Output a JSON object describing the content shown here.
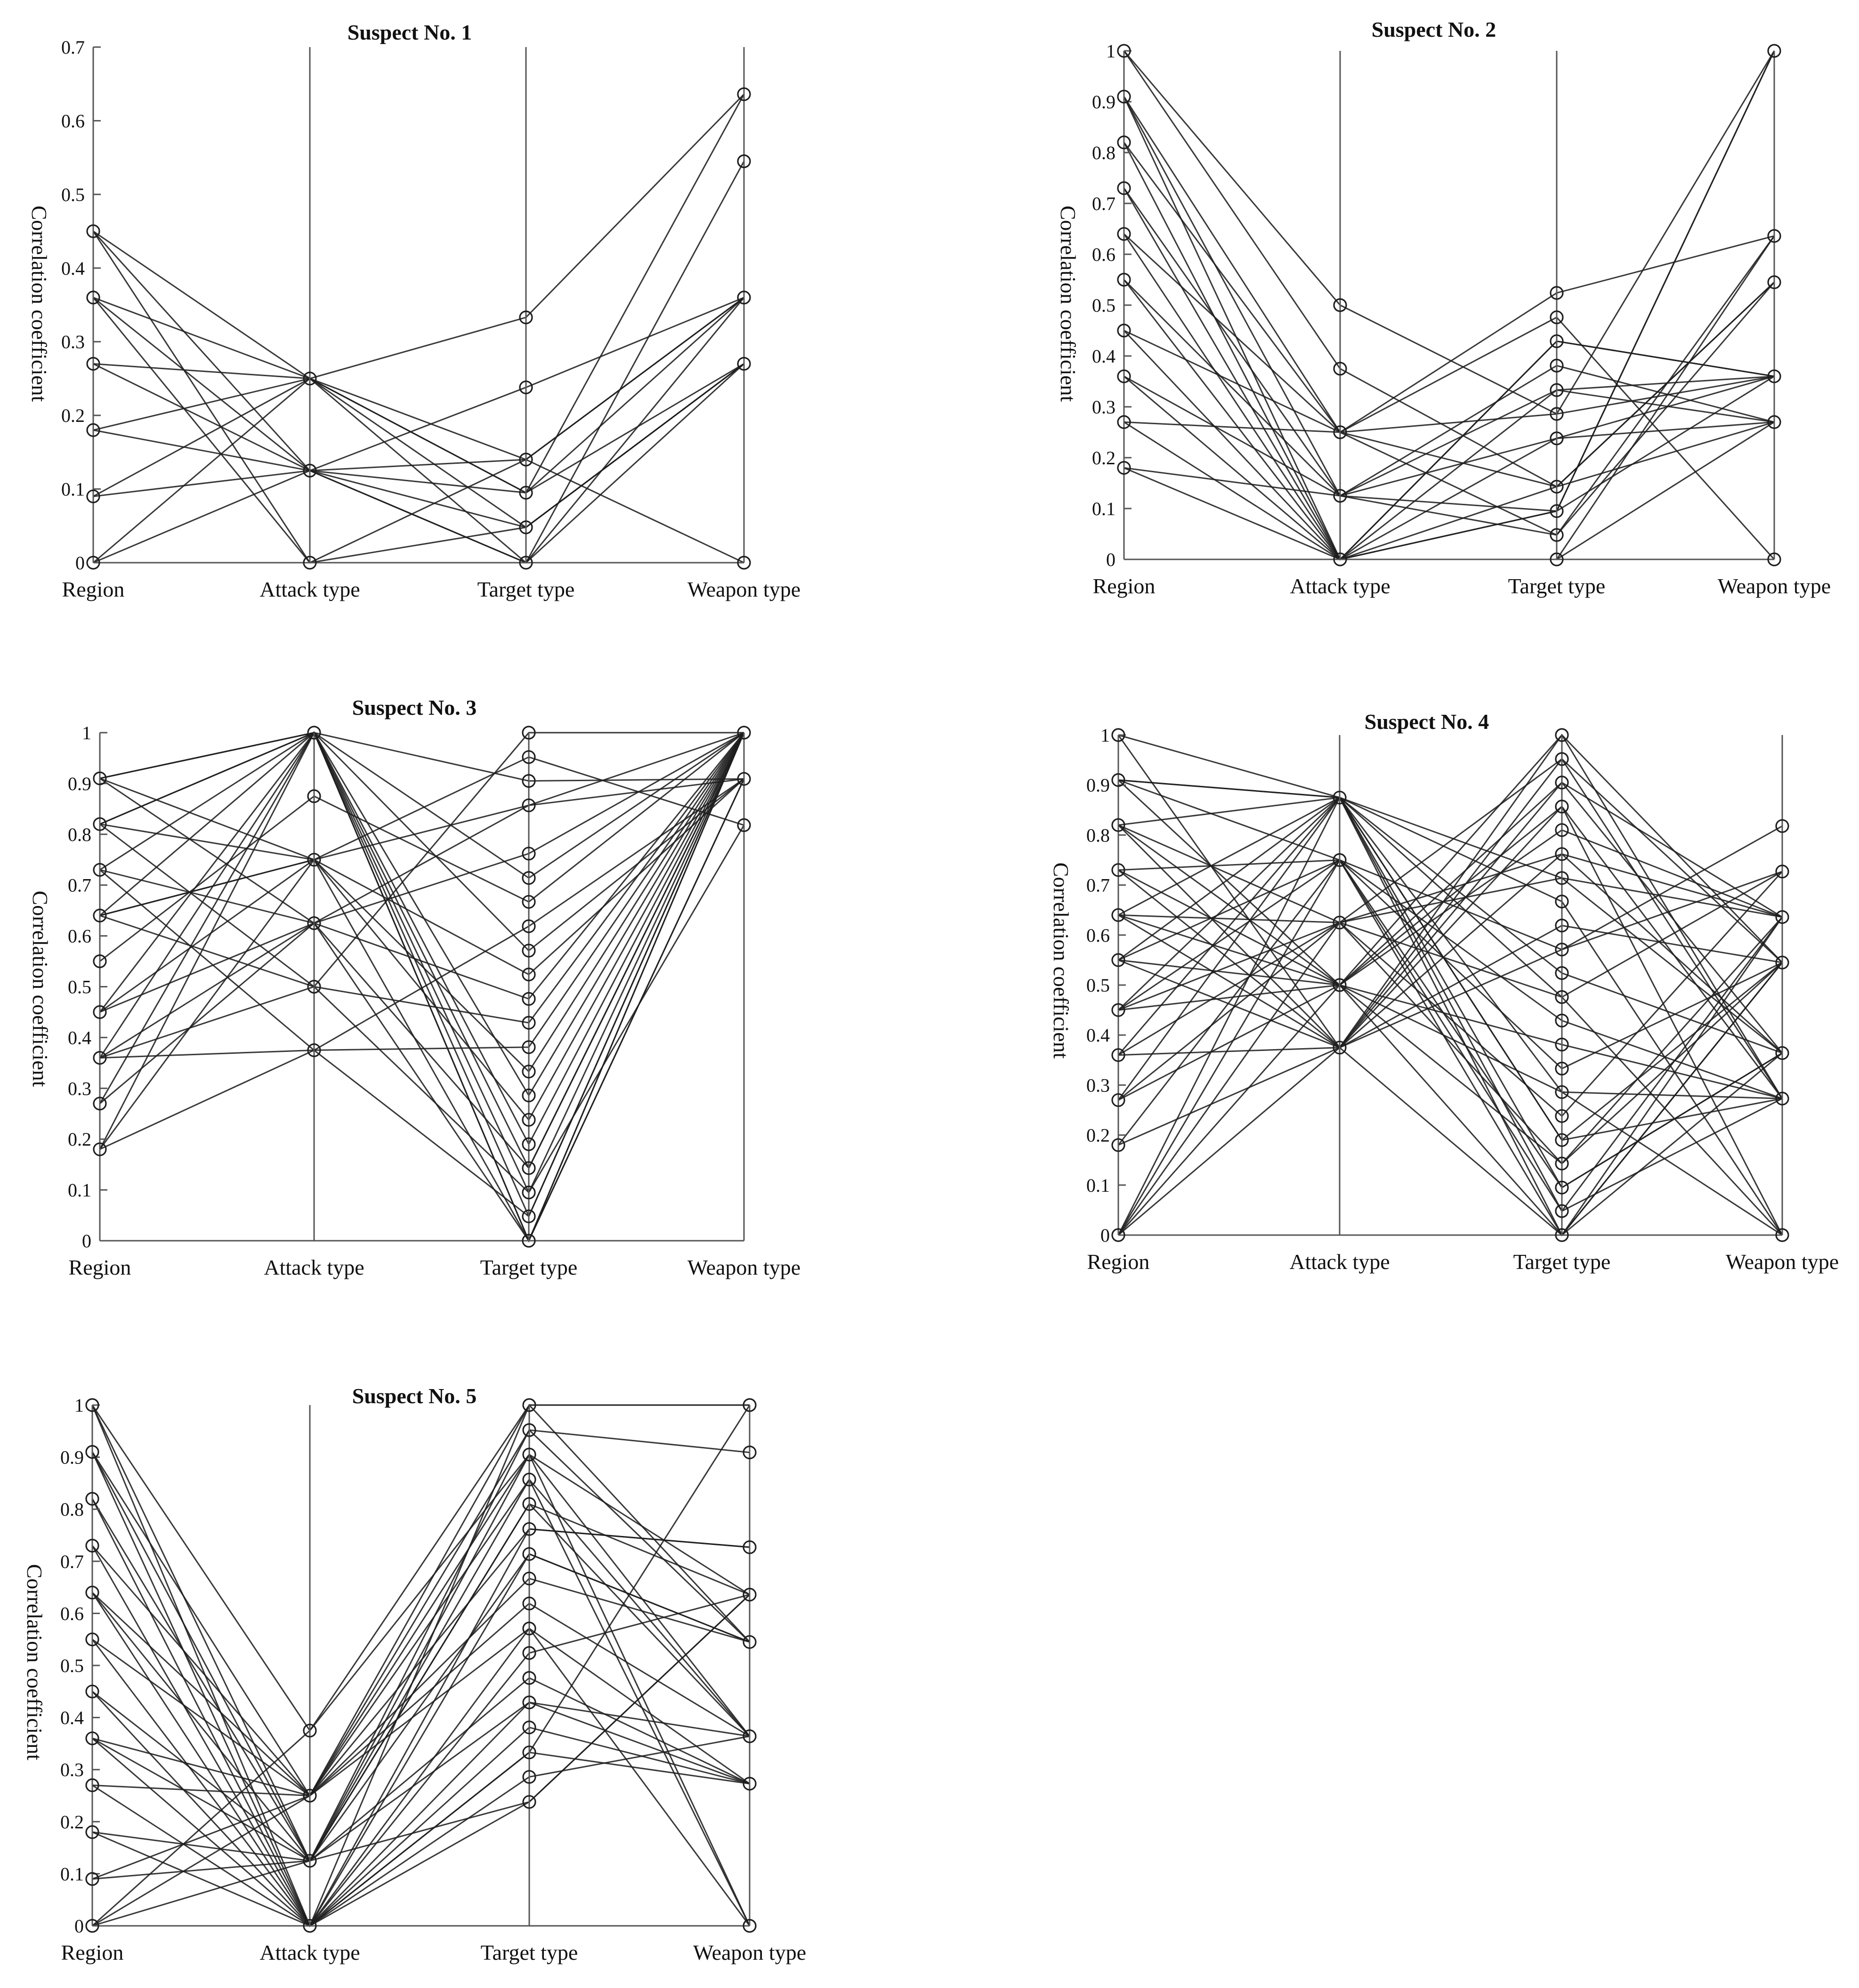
{
  "figure": {
    "axis_labels": [
      "Region",
      "Attack type",
      "Target type",
      "Weapon type"
    ],
    "ylabel": "Correlation coefficient"
  },
  "chart_data": [
    {
      "type": "parallel-coordinates",
      "title": "Suspect No. 1",
      "ylabel": "Correlation coefficient",
      "axes": [
        "Region",
        "Attack type",
        "Target type",
        "Weapon type"
      ],
      "ylim": [
        0,
        0.7
      ],
      "yticks": [
        "0",
        "0.1",
        "0.2",
        "0.3",
        "0.4",
        "0.5",
        "0.6",
        "0.7"
      ],
      "series": [
        [
          0.45,
          0.25,
          0.14,
          0.0
        ],
        [
          0.45,
          0.125,
          0.095,
          0.27
        ],
        [
          0.45,
          0.0,
          0.0,
          0.36
        ],
        [
          0.36,
          0.25,
          0.048,
          0.27
        ],
        [
          0.36,
          0.125,
          0.0,
          0.27
        ],
        [
          0.36,
          0.0,
          0.14,
          0.36
        ],
        [
          0.27,
          0.25,
          0.095,
          0.36
        ],
        [
          0.27,
          0.125,
          0.048,
          0.27
        ],
        [
          0.18,
          0.25,
          0.0,
          0.0
        ],
        [
          0.18,
          0.125,
          0.14,
          0.36
        ],
        [
          0.09,
          0.125,
          0.0,
          0.545
        ],
        [
          0.09,
          0.25,
          0.095,
          0.636
        ],
        [
          0.0,
          0.125,
          0.238,
          0.36
        ],
        [
          0.0,
          0.25,
          0.333,
          0.636
        ],
        [
          0.0,
          0.0,
          0.048,
          0.27
        ]
      ]
    },
    {
      "type": "parallel-coordinates",
      "title": "Suspect No. 2",
      "ylabel": "Correlation coefficient",
      "axes": [
        "Region",
        "Attack type",
        "Target type",
        "Weapon type"
      ],
      "ylim": [
        0,
        1
      ],
      "yticks": [
        "0",
        "0.1",
        "0.2",
        "0.3",
        "0.4",
        "0.5",
        "0.6",
        "0.7",
        "0.8",
        "0.9",
        "1"
      ],
      "series": [
        [
          1.0,
          0.5,
          0.286,
          0.36
        ],
        [
          1.0,
          0.375,
          0.143,
          0.27
        ],
        [
          0.91,
          0.25,
          0.524,
          0.636
        ],
        [
          0.91,
          0.125,
          0.095,
          1.0
        ],
        [
          0.91,
          0.0,
          0.429,
          0.36
        ],
        [
          0.82,
          0.25,
          0.048,
          0.545
        ],
        [
          0.82,
          0.0,
          0.238,
          0.27
        ],
        [
          0.73,
          0.125,
          0.333,
          0.36
        ],
        [
          0.73,
          0.0,
          0.0,
          0.636
        ],
        [
          0.64,
          0.25,
          0.476,
          0.0
        ],
        [
          0.64,
          0.0,
          0.143,
          0.545
        ],
        [
          0.55,
          0.125,
          0.381,
          0.27
        ],
        [
          0.55,
          0.0,
          0.095,
          0.36
        ],
        [
          0.45,
          0.25,
          0.286,
          1.0
        ],
        [
          0.45,
          0.0,
          0.0,
          0.27
        ],
        [
          0.36,
          0.125,
          0.048,
          0.636
        ],
        [
          0.36,
          0.0,
          0.429,
          0.36
        ],
        [
          0.27,
          0.25,
          0.143,
          0.545
        ],
        [
          0.27,
          0.0,
          0.333,
          0.27
        ],
        [
          0.18,
          0.125,
          0.238,
          0.36
        ],
        [
          0.18,
          0.0,
          0.095,
          1.0
        ]
      ]
    },
    {
      "type": "parallel-coordinates",
      "title": "Suspect No. 3",
      "ylabel": "Correlation coefficient",
      "axes": [
        "Region",
        "Attack type",
        "Target type",
        "Weapon type"
      ],
      "ylim": [
        0,
        1
      ],
      "yticks": [
        "0",
        "0.1",
        "0.2",
        "0.3",
        "0.4",
        "0.5",
        "0.6",
        "0.7",
        "0.8",
        "0.9",
        "1"
      ],
      "series": [
        [
          0.91,
          1.0,
          0.0,
          1.0
        ],
        [
          0.91,
          0.75,
          0.857,
          0.909
        ],
        [
          0.91,
          0.625,
          0.143,
          1.0
        ],
        [
          0.82,
          1.0,
          0.095,
          0.818
        ],
        [
          0.82,
          0.5,
          1.0,
          1.0
        ],
        [
          0.82,
          0.75,
          0.333,
          1.0
        ],
        [
          0.73,
          1.0,
          0.571,
          0.909
        ],
        [
          0.73,
          0.375,
          0.048,
          1.0
        ],
        [
          0.73,
          0.625,
          0.762,
          1.0
        ],
        [
          0.64,
          0.75,
          0.238,
          1.0
        ],
        [
          0.64,
          1.0,
          0.905,
          0.909
        ],
        [
          0.64,
          0.5,
          0.429,
          1.0
        ],
        [
          0.55,
          0.875,
          0.667,
          1.0
        ],
        [
          0.45,
          1.0,
          0.0,
          0.909
        ],
        [
          0.45,
          0.625,
          0.476,
          1.0
        ],
        [
          0.45,
          0.75,
          0.952,
          0.818
        ],
        [
          0.36,
          1.0,
          0.286,
          1.0
        ],
        [
          0.36,
          0.375,
          0.619,
          0.909
        ],
        [
          0.36,
          0.5,
          0.095,
          1.0
        ],
        [
          0.27,
          1.0,
          0.714,
          1.0
        ],
        [
          0.27,
          0.625,
          0.0,
          1.0
        ],
        [
          0.18,
          0.75,
          0.524,
          0.909
        ],
        [
          0.18,
          1.0,
          0.143,
          1.0
        ],
        [
          0.18,
          0.375,
          0.381,
          1.0
        ],
        [
          0.91,
          1.0,
          0.048,
          1.0
        ],
        [
          0.64,
          0.75,
          0.0,
          0.909
        ],
        [
          0.36,
          0.625,
          0.857,
          1.0
        ],
        [
          0.82,
          1.0,
          0.19,
          1.0
        ]
      ]
    },
    {
      "type": "parallel-coordinates",
      "title": "Suspect No. 4",
      "ylabel": "Correlation coefficient",
      "axes": [
        "Region",
        "Attack type",
        "Target type",
        "Weapon type"
      ],
      "ylim": [
        0,
        1
      ],
      "yticks": [
        "0",
        "0.1",
        "0.2",
        "0.3",
        "0.4",
        "0.5",
        "0.6",
        "0.7",
        "0.8",
        "0.9",
        "1"
      ],
      "series": [
        [
          1.0,
          0.875,
          0.0,
          0.636
        ],
        [
          1.0,
          0.375,
          0.952,
          0.545
        ],
        [
          0.91,
          0.75,
          0.095,
          0.364
        ],
        [
          0.91,
          0.5,
          0.857,
          0.273
        ],
        [
          0.91,
          0.875,
          0.476,
          0.727
        ],
        [
          0.82,
          0.625,
          0.143,
          0.545
        ],
        [
          0.82,
          0.375,
          0.762,
          0.636
        ],
        [
          0.82,
          0.875,
          0.286,
          0.0
        ],
        [
          0.73,
          0.75,
          0.048,
          0.273
        ],
        [
          0.73,
          0.5,
          0.905,
          0.364
        ],
        [
          0.73,
          0.375,
          0.571,
          0.818
        ],
        [
          0.64,
          0.875,
          0.19,
          0.545
        ],
        [
          0.64,
          0.625,
          0.714,
          0.636
        ],
        [
          0.64,
          0.5,
          0.381,
          0.273
        ],
        [
          0.55,
          0.75,
          0.0,
          0.364
        ],
        [
          0.55,
          0.375,
          1.0,
          0.545
        ],
        [
          0.55,
          0.875,
          0.667,
          0.0
        ],
        [
          0.45,
          0.625,
          0.238,
          0.727
        ],
        [
          0.45,
          0.5,
          0.81,
          0.636
        ],
        [
          0.45,
          0.75,
          0.429,
          0.273
        ],
        [
          0.36,
          0.875,
          0.095,
          0.364
        ],
        [
          0.36,
          0.375,
          0.619,
          0.545
        ],
        [
          0.36,
          0.625,
          0.952,
          0.273
        ],
        [
          0.27,
          0.5,
          0.143,
          0.636
        ],
        [
          0.27,
          0.875,
          0.524,
          0.364
        ],
        [
          0.18,
          0.75,
          0.333,
          0.545
        ],
        [
          0.18,
          0.375,
          0.857,
          0.0
        ],
        [
          0.0,
          0.875,
          0.048,
          0.636
        ],
        [
          0.0,
          0.5,
          1.0,
          0.273
        ],
        [
          0.0,
          0.625,
          0.762,
          0.364
        ],
        [
          0.0,
          0.375,
          0.0,
          0.545
        ],
        [
          0.0,
          0.75,
          0.571,
          0.727
        ],
        [
          0.91,
          0.875,
          0.19,
          0.273
        ],
        [
          0.64,
          0.375,
          0.905,
          0.636
        ],
        [
          0.82,
          0.5,
          0.0,
          0.545
        ],
        [
          0.45,
          0.875,
          0.714,
          0.364
        ],
        [
          0.27,
          0.625,
          0.476,
          0.0
        ],
        [
          0.55,
          0.5,
          0.286,
          0.273
        ]
      ]
    },
    {
      "type": "parallel-coordinates",
      "title": "Suspect No. 5",
      "ylabel": "Correlation coefficient",
      "axes": [
        "Region",
        "Attack type",
        "Target type",
        "Weapon type"
      ],
      "ylim": [
        0,
        1
      ],
      "yticks": [
        "0",
        "0.1",
        "0.2",
        "0.3",
        "0.4",
        "0.5",
        "0.6",
        "0.7",
        "0.8",
        "0.9",
        "1"
      ],
      "series": [
        [
          1.0,
          0.375,
          0.905,
          0.636
        ],
        [
          1.0,
          0.125,
          0.81,
          0.364
        ],
        [
          1.0,
          0.0,
          0.333,
          1.0
        ],
        [
          0.91,
          0.25,
          1.0,
          0.545
        ],
        [
          0.91,
          0.0,
          0.429,
          0.273
        ],
        [
          0.82,
          0.125,
          0.952,
          0.909
        ],
        [
          0.82,
          0.0,
          0.238,
          0.636
        ],
        [
          0.73,
          0.25,
          0.857,
          0.364
        ],
        [
          0.73,
          0.0,
          0.571,
          0.0
        ],
        [
          0.64,
          0.125,
          0.714,
          0.545
        ],
        [
          0.64,
          0.0,
          0.381,
          0.273
        ],
        [
          0.55,
          0.25,
          0.762,
          0.727
        ],
        [
          0.55,
          0.0,
          0.286,
          0.364
        ],
        [
          0.45,
          0.125,
          0.905,
          0.0
        ],
        [
          0.45,
          0.0,
          0.524,
          0.636
        ],
        [
          0.36,
          0.25,
          0.667,
          0.545
        ],
        [
          0.36,
          0.125,
          0.476,
          0.273
        ],
        [
          0.27,
          0.0,
          1.0,
          1.0
        ],
        [
          0.27,
          0.25,
          0.619,
          0.364
        ],
        [
          0.18,
          0.125,
          0.81,
          0.636
        ],
        [
          0.18,
          0.0,
          0.333,
          0.273
        ],
        [
          0.09,
          0.25,
          0.952,
          0.545
        ],
        [
          0.09,
          0.125,
          0.429,
          0.364
        ],
        [
          0.0,
          0.375,
          1.0,
          1.0
        ],
        [
          0.0,
          0.25,
          0.571,
          0.273
        ],
        [
          0.0,
          0.125,
          0.857,
          0.0
        ],
        [
          0.0,
          0.0,
          0.714,
          0.545
        ],
        [
          0.91,
          0.125,
          0.238,
          0.636
        ],
        [
          0.64,
          0.25,
          0.905,
          0.364
        ],
        [
          0.36,
          0.0,
          0.762,
          0.727
        ]
      ]
    }
  ]
}
